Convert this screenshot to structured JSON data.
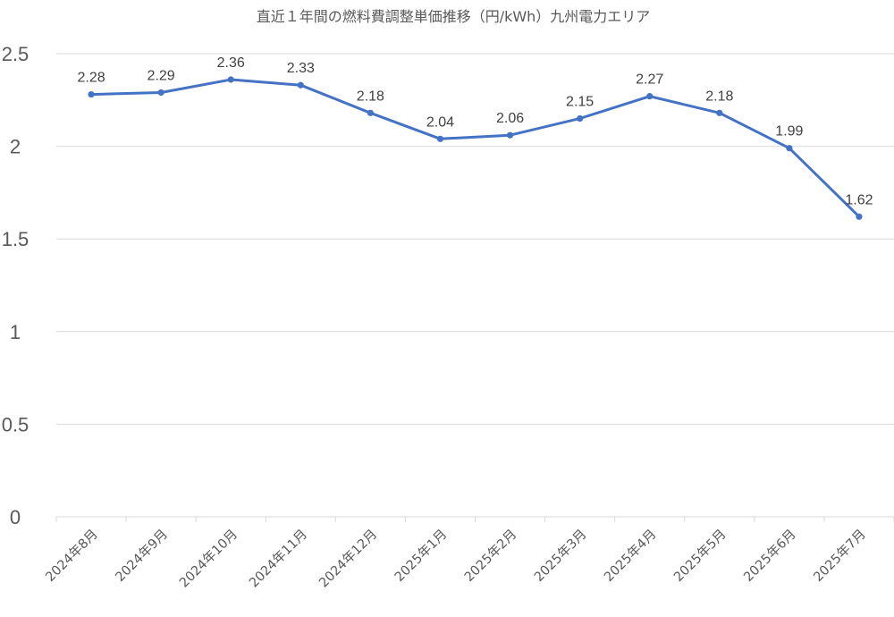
{
  "chart_data": {
    "type": "line",
    "title": "直近１年間の燃料費調整単価推移（円/kWh）九州電力エリア",
    "categories": [
      "2024年8月",
      "2024年9月",
      "2024年10月",
      "2024年11月",
      "2024年12月",
      "2025年1月",
      "2025年2月",
      "2025年3月",
      "2025年4月",
      "2025年5月",
      "2025年6月",
      "2025年7月"
    ],
    "series": [
      {
        "values": [
          2.28,
          2.29,
          2.36,
          2.33,
          2.18,
          2.04,
          2.06,
          2.15,
          2.27,
          2.18,
          1.99,
          1.62
        ],
        "labels": [
          "2.28",
          "2.29",
          "2.36",
          "2.33",
          "2.18",
          "2.04",
          "2.06",
          "2.15",
          "2.27",
          "2.18",
          "1.99",
          "1.62"
        ],
        "color": "#4472c4"
      }
    ],
    "ylim": [
      0,
      2.5
    ],
    "yticks": [
      "0",
      "0.5",
      "1",
      "1.5",
      "2",
      "2.5"
    ],
    "ytick_values": [
      0,
      0.5,
      1,
      1.5,
      2,
      2.5
    ],
    "xlabel": "",
    "ylabel": "",
    "grid": true,
    "legend": "none",
    "colors": {
      "line": "#4472c4",
      "grid": "#d9d9d9",
      "text": "#595959"
    }
  }
}
